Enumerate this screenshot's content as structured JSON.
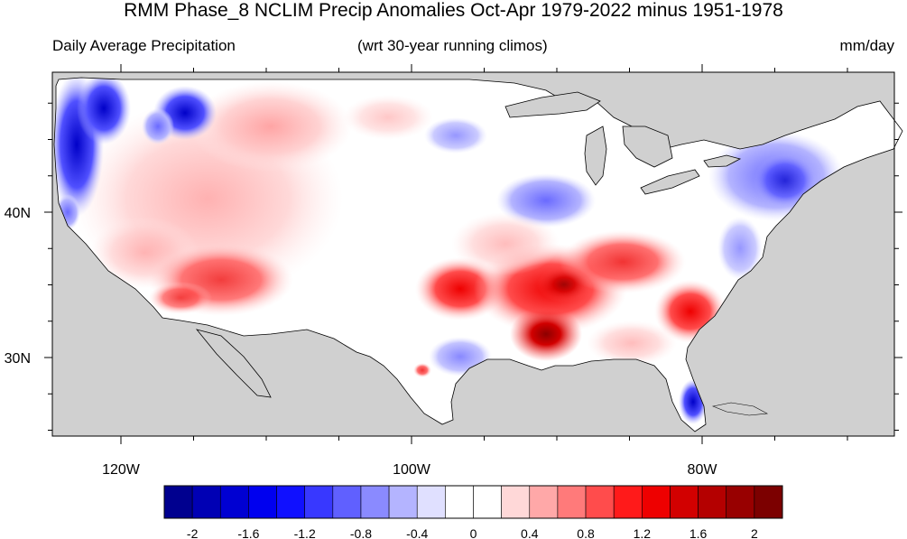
{
  "title": "RMM Phase_8 NCLIM Precip Anomalies Oct-Apr 1979-2022 minus 1951-1978",
  "subtitle_left": "Daily Average Precipitation",
  "subtitle_center": "(wrt 30-year running climos)",
  "subtitle_right": "mm/day",
  "lon_ticks": [
    {
      "label": "120W",
      "lon": -120
    },
    {
      "label": "100W",
      "lon": -100
    },
    {
      "label": "80W",
      "lon": -80
    }
  ],
  "lat_ticks": [
    {
      "label": "40N",
      "lat": 40
    },
    {
      "label": "30N",
      "lat": 30
    }
  ],
  "colorbar": {
    "labels": [
      "-2",
      "-1.6",
      "-1.2",
      "-0.8",
      "-0.4",
      "0",
      "0.4",
      "0.8",
      "1.2",
      "1.6",
      "2"
    ],
    "colors": [
      "#00008f",
      "#0000b4",
      "#0000d2",
      "#0000ef",
      "#1010ff",
      "#3838ff",
      "#6060ff",
      "#8a8aff",
      "#b4b4ff",
      "#e0e0ff",
      "#ffffff",
      "#ffffff",
      "#ffd8d8",
      "#ffa8a8",
      "#ff7a7a",
      "#ff4c4c",
      "#ff1a1a",
      "#ee0000",
      "#d20000",
      "#b40000",
      "#980000",
      "#7c0000"
    ]
  },
  "map_colors": {
    "land": "#ffffff",
    "masked": "#d0d0d0",
    "outline": "#000000"
  },
  "anomalies": [
    {
      "region": "Pacific Northwest coast",
      "value": -2.0
    },
    {
      "region": "Northern Idaho",
      "value": -1.6
    },
    {
      "region": "Northwest Montana",
      "value": -1.0
    },
    {
      "region": "Mid-Atlantic / New England",
      "value": -0.8
    },
    {
      "region": "Ohio Valley",
      "value": -0.8
    },
    {
      "region": "South Florida",
      "value": -1.2
    },
    {
      "region": "South Texas",
      "value": -0.4
    },
    {
      "region": "Southern Plains",
      "value": 1.0
    },
    {
      "region": "Lower Mississippi Valley",
      "value": 1.8
    },
    {
      "region": "Tennessee Valley",
      "value": 1.2
    },
    {
      "region": "Carolinas",
      "value": 1.2
    },
    {
      "region": "Arizona / Southwest",
      "value": 0.8
    },
    {
      "region": "Northern Rockies",
      "value": 0.4
    }
  ]
}
